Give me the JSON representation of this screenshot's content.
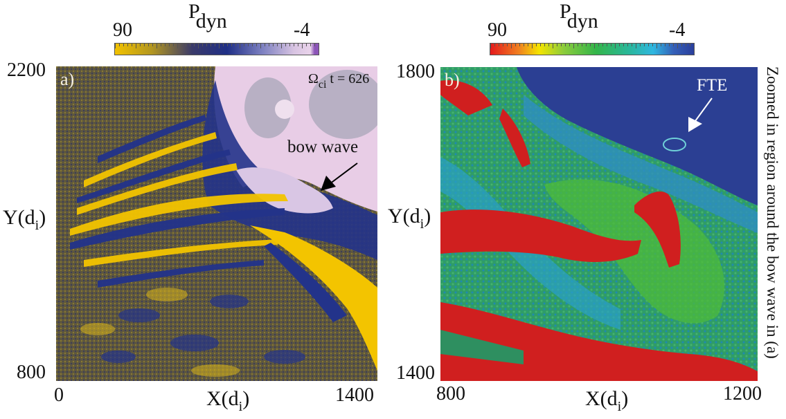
{
  "panel_a": {
    "label": "a)",
    "colorbar": {
      "title": "P",
      "title_sub": "dyn",
      "min_label": "90",
      "max_label": "-4",
      "colors": [
        "#f2c200",
        "#1f2f86",
        "#e6cde6"
      ]
    },
    "time_label": {
      "symbol": "Ω",
      "sub": "ci",
      "text": "t = 626"
    },
    "annotation": "bow wave",
    "xlabel": {
      "main": "X(d",
      "sub": "i",
      "end": ")"
    },
    "ylabel": {
      "main": "Y(d",
      "sub": "i",
      "end": ")"
    },
    "xticks": [
      "0",
      "1400"
    ],
    "yticks": [
      "2200",
      "800"
    ]
  },
  "panel_b": {
    "label": "b)",
    "colorbar": {
      "title": "P",
      "title_sub": "dyn",
      "min_label": "90",
      "max_label": "-4",
      "colors": [
        "#e41a1c",
        "#f4e400",
        "#33b54a",
        "#2fb7e0",
        "#2a3f9c"
      ]
    },
    "annotation": "FTE",
    "xlabel": {
      "main": "X(d",
      "sub": "i",
      "end": ")"
    },
    "ylabel": {
      "main": "Y(d",
      "sub": "i",
      "end": ")"
    },
    "xticks": [
      "800",
      "1200"
    ],
    "yticks": [
      "1800",
      "1400"
    ],
    "side_caption": "Zoomed in region around the bow wave in (a)"
  }
}
